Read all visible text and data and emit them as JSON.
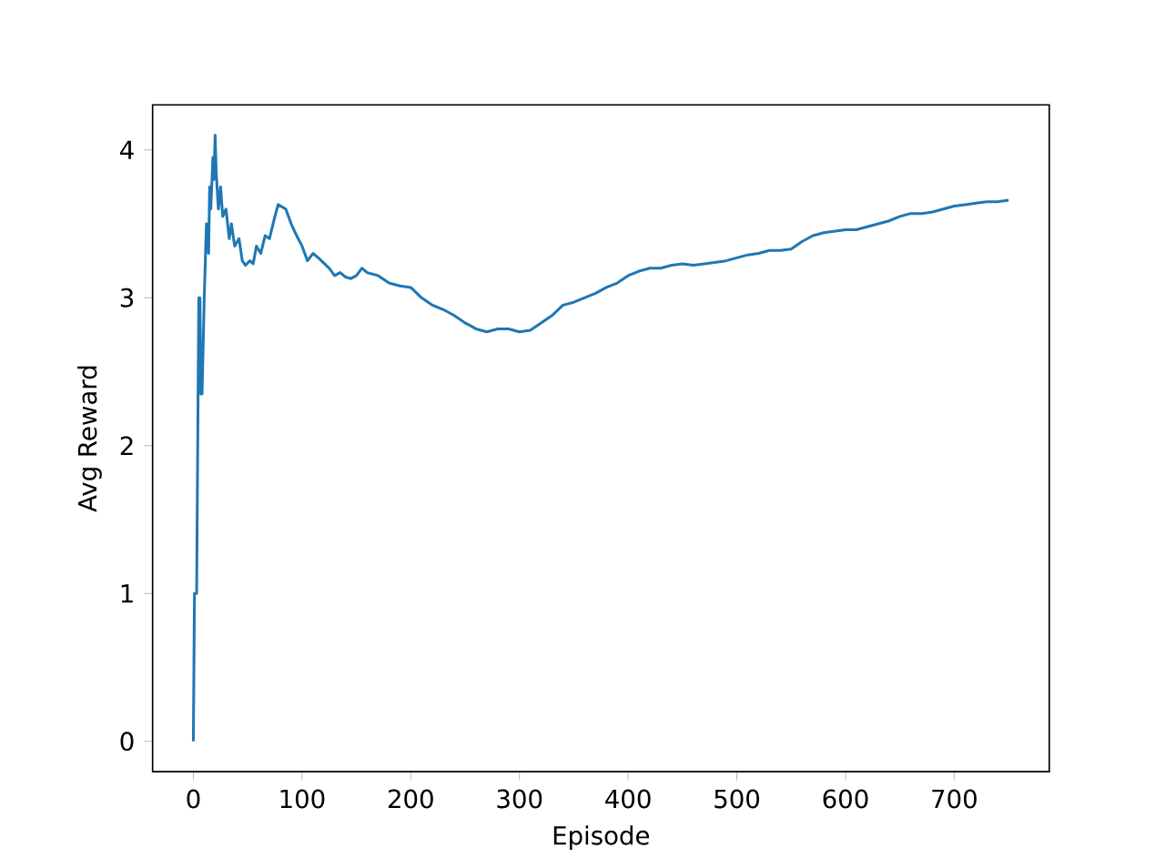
{
  "chart_data": {
    "type": "line",
    "xlabel": "Episode",
    "ylabel": "Avg Reward",
    "xlim": [
      -37.5,
      787.5
    ],
    "ylim": [
      -0.205,
      4.305
    ],
    "xticks": [
      0,
      100,
      200,
      300,
      400,
      500,
      600,
      700
    ],
    "yticks": [
      0,
      1,
      2,
      3,
      4
    ],
    "series": [
      {
        "color": "#1f77b4",
        "x": [
          0,
          1,
          3,
          4,
          5,
          6,
          7,
          8,
          10,
          12,
          14,
          15,
          16,
          18,
          19,
          20,
          21,
          23,
          25,
          27,
          30,
          33,
          35,
          38,
          42,
          45,
          48,
          52,
          55,
          58,
          62,
          66,
          70,
          75,
          78,
          85,
          90,
          95,
          100,
          105,
          110,
          115,
          125,
          130,
          135,
          140,
          145,
          150,
          155,
          160,
          170,
          180,
          190,
          200,
          210,
          220,
          230,
          240,
          250,
          260,
          270,
          280,
          290,
          300,
          310,
          320,
          330,
          340,
          350,
          360,
          370,
          380,
          390,
          400,
          410,
          420,
          430,
          440,
          450,
          460,
          470,
          480,
          490,
          500,
          510,
          520,
          530,
          540,
          550,
          560,
          570,
          580,
          590,
          600,
          610,
          620,
          630,
          640,
          650,
          660,
          670,
          680,
          690,
          700,
          710,
          720,
          730,
          740,
          750
        ],
        "values": [
          0,
          1.0,
          1.0,
          2.0,
          3.0,
          3.0,
          2.35,
          2.35,
          3.0,
          3.5,
          3.3,
          3.75,
          3.6,
          3.95,
          3.8,
          4.1,
          3.85,
          3.6,
          3.75,
          3.55,
          3.6,
          3.4,
          3.5,
          3.35,
          3.4,
          3.25,
          3.22,
          3.25,
          3.23,
          3.35,
          3.3,
          3.42,
          3.4,
          3.55,
          3.63,
          3.6,
          3.5,
          3.42,
          3.35,
          3.25,
          3.3,
          3.27,
          3.2,
          3.15,
          3.17,
          3.14,
          3.13,
          3.15,
          3.2,
          3.17,
          3.15,
          3.1,
          3.08,
          3.07,
          3.0,
          2.95,
          2.92,
          2.88,
          2.83,
          2.79,
          2.77,
          2.79,
          2.79,
          2.77,
          2.78,
          2.83,
          2.88,
          2.95,
          2.97,
          3.0,
          3.03,
          3.07,
          3.1,
          3.15,
          3.18,
          3.2,
          3.2,
          3.22,
          3.23,
          3.22,
          3.23,
          3.24,
          3.25,
          3.27,
          3.29,
          3.3,
          3.32,
          3.32,
          3.33,
          3.38,
          3.42,
          3.44,
          3.45,
          3.46,
          3.46,
          3.48,
          3.5,
          3.52,
          3.55,
          3.57,
          3.57,
          3.58,
          3.6,
          3.62,
          3.63,
          3.64,
          3.65,
          3.65,
          3.66
        ]
      }
    ]
  }
}
